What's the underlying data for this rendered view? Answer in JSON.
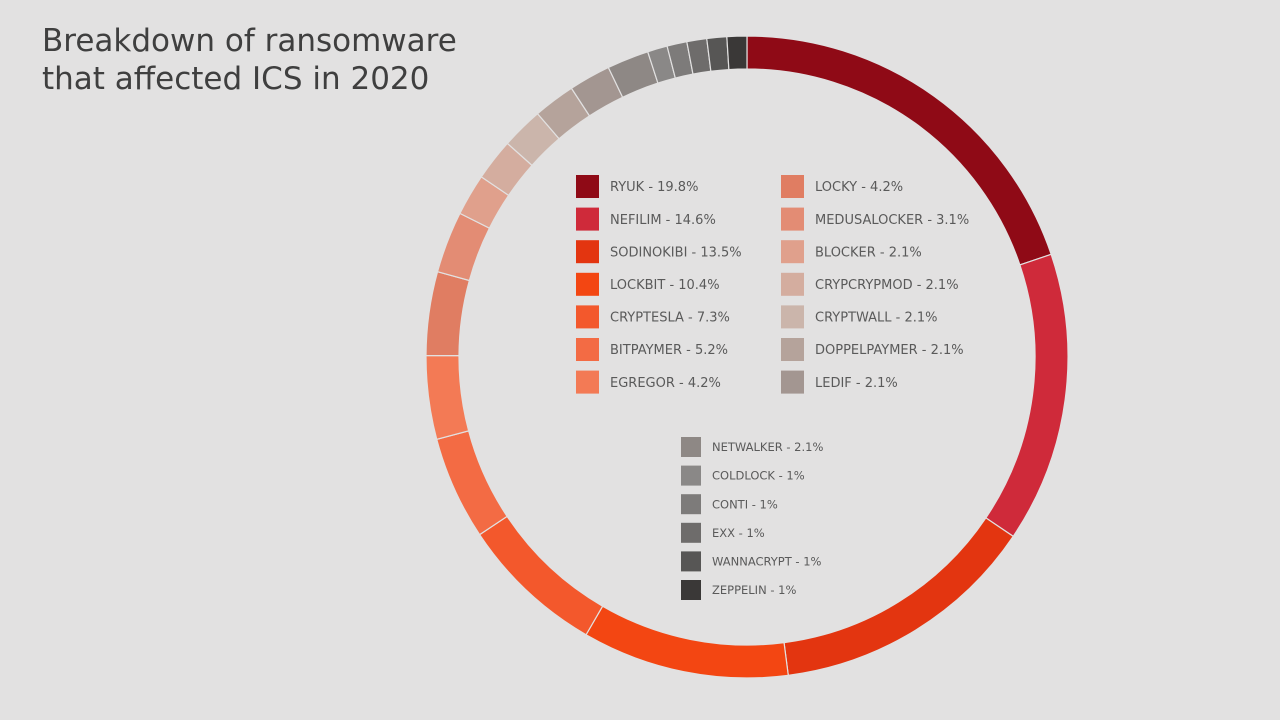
{
  "title_lines": [
    "Breakdown of ransomware",
    "that affected ICS in 2020"
  ],
  "chart_data": {
    "type": "pie",
    "hole": "donut",
    "title": "Breakdown of ransomware that affected ICS in 2020",
    "unit": "%",
    "slices": [
      {
        "label": "RYUK",
        "value": 19.8,
        "display": "19.8%",
        "color": "#8f0a16"
      },
      {
        "label": "NEFILIM",
        "value": 14.6,
        "display": "14.6%",
        "color": "#cf2a3a"
      },
      {
        "label": "SODINOKIBI",
        "value": 13.5,
        "display": "13.5%",
        "color": "#e33510"
      },
      {
        "label": "LOCKBIT",
        "value": 10.4,
        "display": "10.4%",
        "color": "#f34612"
      },
      {
        "label": "CRYPTESLA",
        "value": 7.3,
        "display": "7.3%",
        "color": "#f3582c"
      },
      {
        "label": "BITPAYMER",
        "value": 5.2,
        "display": "5.2%",
        "color": "#f36b44"
      },
      {
        "label": "EGREGOR",
        "value": 4.2,
        "display": "4.2%",
        "color": "#f37a55"
      },
      {
        "label": "LOCKY",
        "value": 4.2,
        "display": "4.2%",
        "color": "#e07d62"
      },
      {
        "label": "MEDUSALOCKER",
        "value": 3.1,
        "display": "3.1%",
        "color": "#e38c74"
      },
      {
        "label": "BLOCKER",
        "value": 2.1,
        "display": "2.1%",
        "color": "#e0a08c"
      },
      {
        "label": "CRYPCRYPMOD",
        "value": 2.1,
        "display": "2.1%",
        "color": "#d4ad9f"
      },
      {
        "label": "CRYPTWALL",
        "value": 2.1,
        "display": "2.1%",
        "color": "#cbb5ab"
      },
      {
        "label": "DOPPELPAYMER",
        "value": 2.1,
        "display": "2.1%",
        "color": "#b5a39b"
      },
      {
        "label": "LEDIF",
        "value": 2.1,
        "display": "2.1%",
        "color": "#a39691"
      },
      {
        "label": "NETWALKER",
        "value": 2.1,
        "display": "2.1%",
        "color": "#8e8885"
      },
      {
        "label": "COLDLOCK",
        "value": 1,
        "display": "1%",
        "color": "#8a8887"
      },
      {
        "label": "CONTI",
        "value": 1,
        "display": "1%",
        "color": "#7d7b7a"
      },
      {
        "label": "EXX",
        "value": 1,
        "display": "1%",
        "color": "#6e6c6b"
      },
      {
        "label": "WANNACRYPT",
        "value": 1,
        "display": "1%",
        "color": "#575655"
      },
      {
        "label": "ZEPPELIN",
        "value": 1,
        "display": "1%",
        "color": "#3a3837"
      }
    ],
    "legend_placement": "inside-center"
  }
}
